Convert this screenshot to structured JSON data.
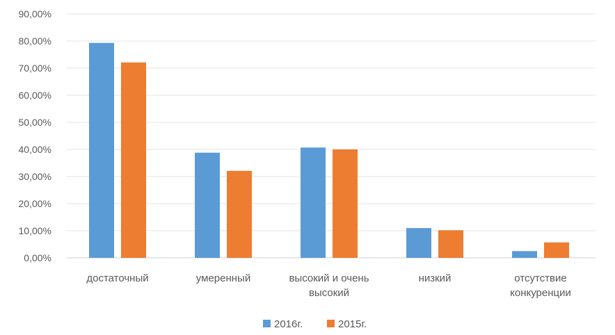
{
  "chart_data": {
    "type": "bar",
    "categories": [
      [
        "достаточный"
      ],
      [
        "умеренный"
      ],
      [
        "высокий и очень",
        "высокий"
      ],
      [
        "низкий"
      ],
      [
        "отсутствие",
        "конкуренции"
      ]
    ],
    "series": [
      {
        "name": "2016г.",
        "color": "#5b9bd5",
        "values": [
          79.3,
          38.8,
          40.7,
          11.0,
          2.5
        ]
      },
      {
        "name": "2015г.",
        "color": "#ed7d31",
        "values": [
          72.1,
          32.1,
          40.0,
          10.2,
          5.7
        ]
      }
    ],
    "y_ticks": [
      "0,00%",
      "10,00%",
      "20,00%",
      "30,00%",
      "40,00%",
      "50,00%",
      "60,00%",
      "70,00%",
      "80,00%",
      "90,00%"
    ],
    "ylim": [
      0,
      90
    ],
    "title": "",
    "xlabel": "",
    "ylabel": "",
    "grid": true,
    "legend_position": "bottom"
  }
}
